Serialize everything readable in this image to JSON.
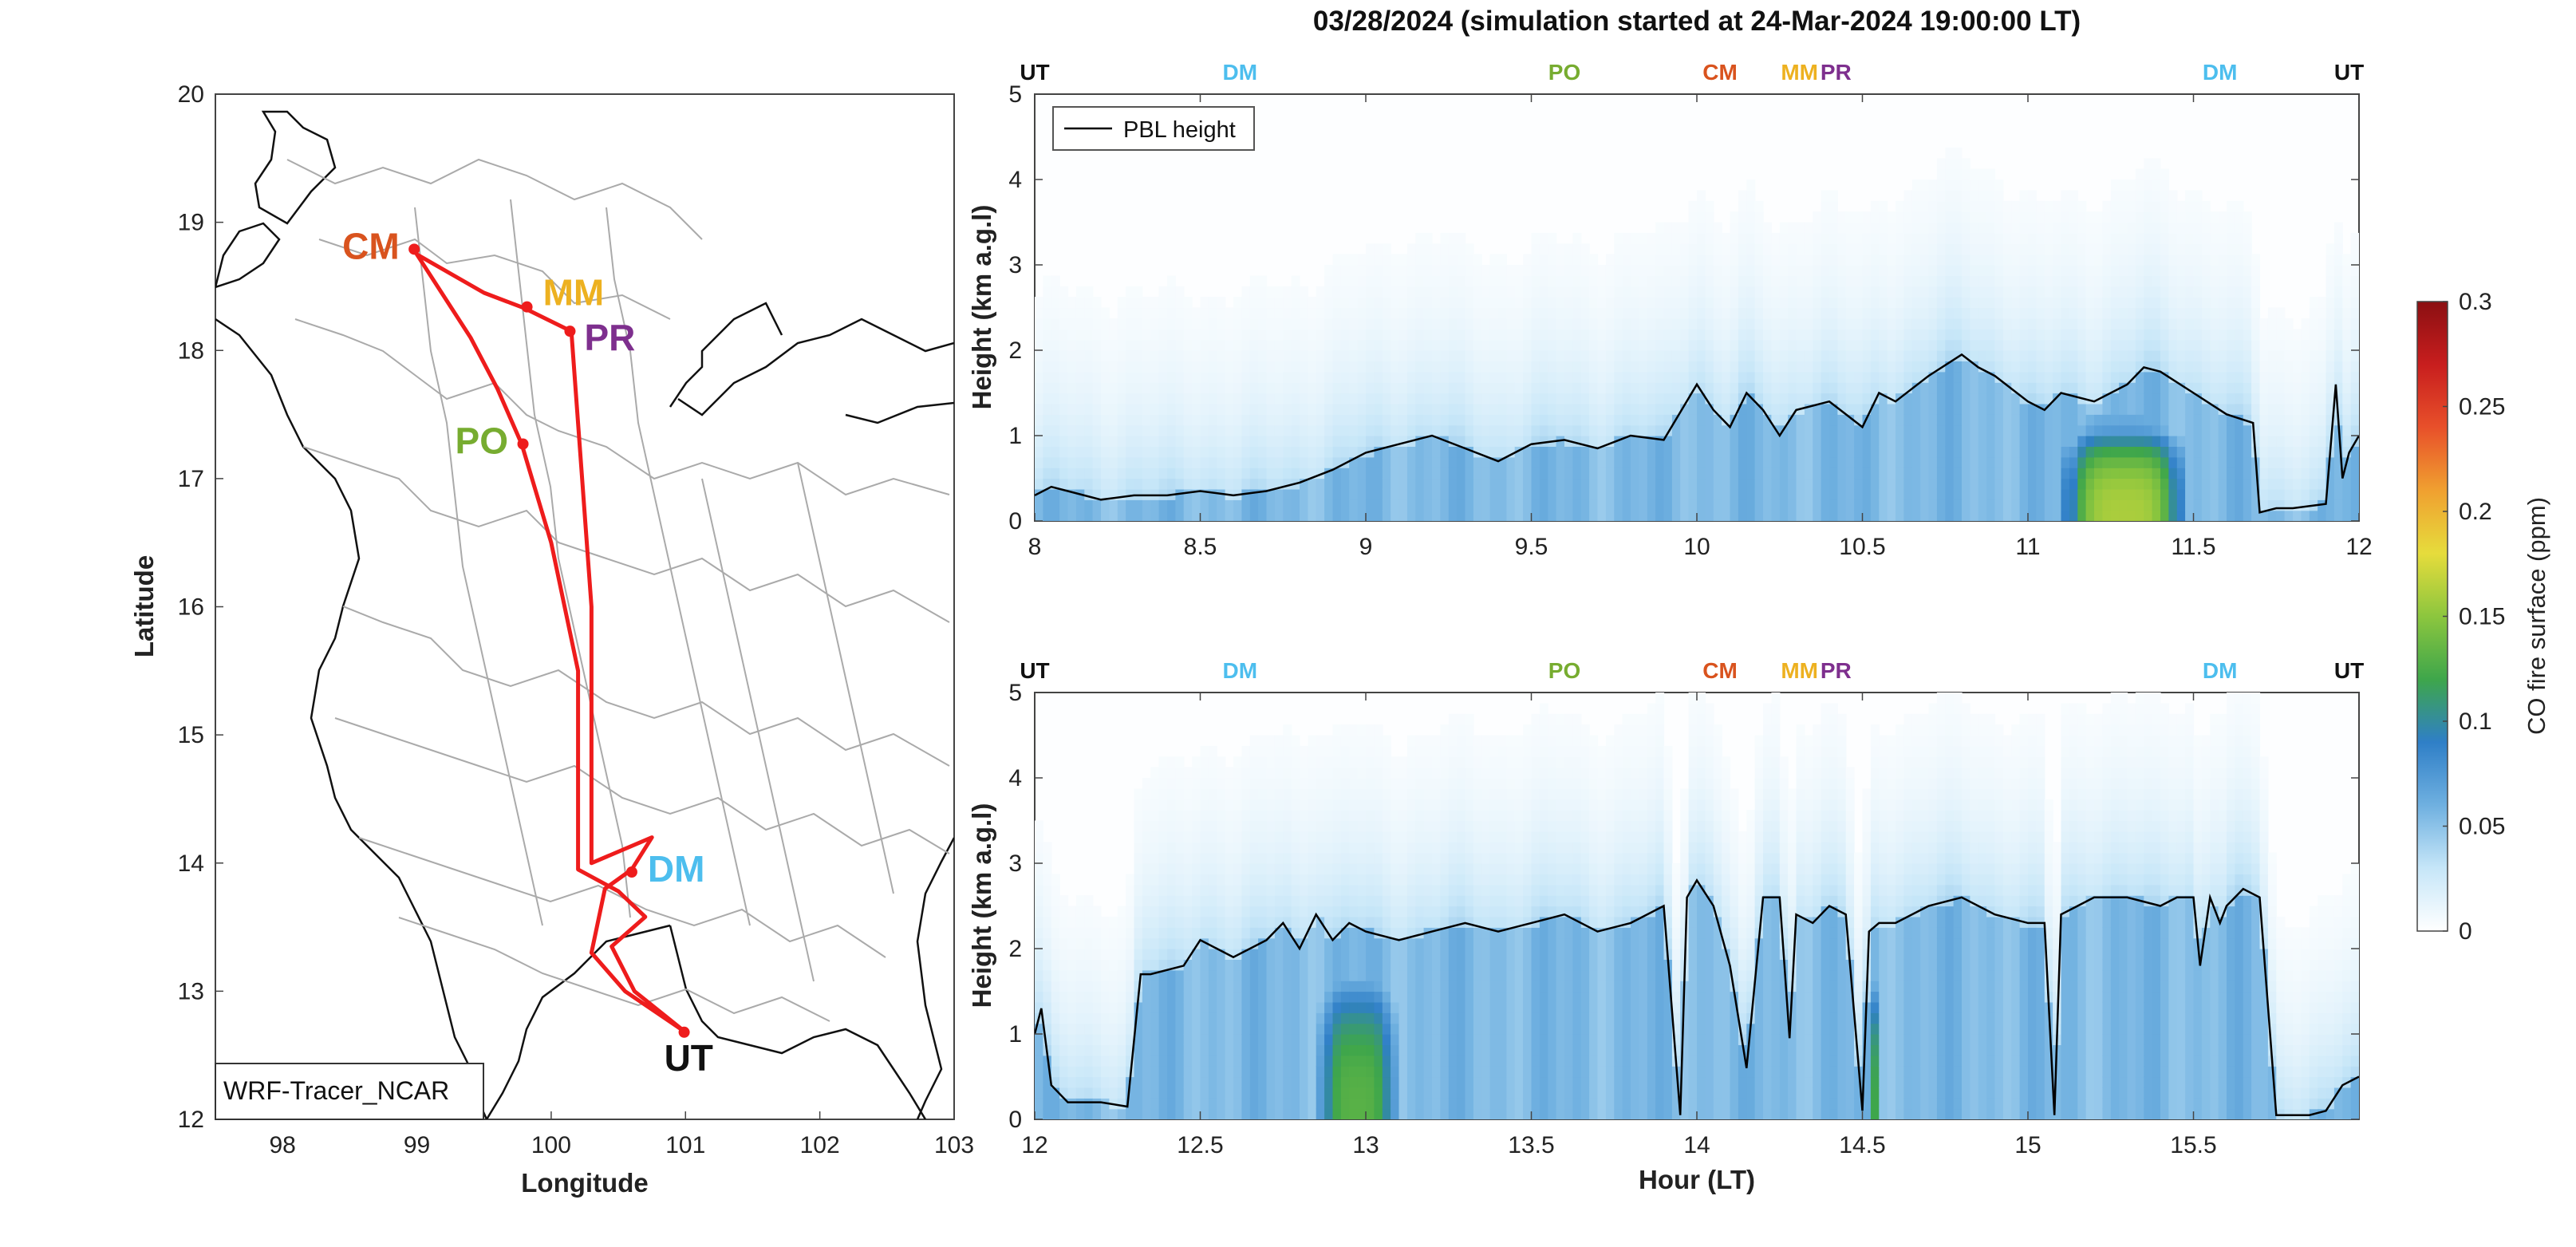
{
  "title": "03/28/2024 (simulation started at 24-Mar-2024 19:00:00 LT)",
  "map": {
    "xlabel": "Longitude",
    "ylabel": "Latitude",
    "xlim": [
      97.5,
      103
    ],
    "ylim": [
      12,
      20
    ],
    "xticks": [
      "98",
      "99",
      "100",
      "101",
      "102",
      "103"
    ],
    "yticks": [
      "12",
      "13",
      "14",
      "15",
      "16",
      "17",
      "18",
      "19",
      "20"
    ],
    "model_label": "WRF-Tracer_NCAR",
    "route_color": "#ee1c1c",
    "route": [
      [
        101.0,
        12.68
      ],
      [
        100.62,
        13.0
      ],
      [
        100.45,
        13.35
      ],
      [
        100.7,
        13.58
      ],
      [
        100.5,
        13.78
      ],
      [
        100.2,
        13.95
      ],
      [
        100.2,
        15.5
      ],
      [
        100.0,
        16.5
      ],
      [
        99.78,
        17.27
      ],
      [
        99.6,
        17.7
      ],
      [
        99.4,
        18.1
      ],
      [
        99.0,
        18.75
      ],
      [
        99.5,
        18.45
      ],
      [
        99.8,
        18.33
      ],
      [
        100.15,
        18.15
      ],
      [
        100.3,
        16.0
      ],
      [
        100.3,
        14.0
      ],
      [
        100.75,
        14.2
      ],
      [
        100.6,
        13.95
      ],
      [
        100.4,
        13.8
      ],
      [
        100.3,
        13.3
      ],
      [
        100.55,
        13.0
      ],
      [
        101.0,
        12.68
      ]
    ],
    "sites": [
      {
        "code": "CM",
        "lon": 98.98,
        "lat": 18.79,
        "color": "#d9531e"
      },
      {
        "code": "MM",
        "lon": 99.82,
        "lat": 18.34,
        "color": "#edb120"
      },
      {
        "code": "PR",
        "lon": 100.14,
        "lat": 18.15,
        "color": "#7e2f8e"
      },
      {
        "code": "PO",
        "lon": 99.79,
        "lat": 17.27,
        "color": "#77ac30"
      },
      {
        "code": "DM",
        "lon": 100.6,
        "lat": 13.93,
        "color": "#4dbeee"
      },
      {
        "code": "UT",
        "lon": 100.99,
        "lat": 12.68,
        "color": "#111111"
      }
    ]
  },
  "chart_data": [
    {
      "type": "heatmap",
      "xlabel": "",
      "ylabel": "Height (km a.g.l)",
      "xlim": [
        8,
        12
      ],
      "ylim": [
        0,
        5
      ],
      "xticks": [
        "8",
        "8.5",
        "9",
        "9.5",
        "10",
        "10.5",
        "11",
        "11.5",
        "12"
      ],
      "yticks": [
        "0",
        "1",
        "2",
        "3",
        "4",
        "5"
      ],
      "legend": "PBL height",
      "site_markers": [
        {
          "code": "UT",
          "x": 8.0,
          "color": "#111111"
        },
        {
          "code": "DM",
          "x": 8.62,
          "color": "#4dbeee"
        },
        {
          "code": "PO",
          "x": 9.6,
          "color": "#77ac30"
        },
        {
          "code": "CM",
          "x": 10.07,
          "color": "#d9531e"
        },
        {
          "code": "MM",
          "x": 10.31,
          "color": "#edb120"
        },
        {
          "code": "PR",
          "x": 10.42,
          "color": "#7e2f8e"
        },
        {
          "code": "DM",
          "x": 11.58,
          "color": "#4dbeee"
        },
        {
          "code": "UT",
          "x": 11.97,
          "color": "#111111"
        }
      ],
      "pbl": {
        "x": [
          8.0,
          8.05,
          8.1,
          8.2,
          8.3,
          8.4,
          8.5,
          8.6,
          8.7,
          8.8,
          8.9,
          9.0,
          9.1,
          9.2,
          9.3,
          9.4,
          9.5,
          9.6,
          9.7,
          9.8,
          9.9,
          10.0,
          10.05,
          10.1,
          10.15,
          10.2,
          10.25,
          10.3,
          10.4,
          10.5,
          10.55,
          10.6,
          10.7,
          10.8,
          10.85,
          10.9,
          11.0,
          11.05,
          11.1,
          11.2,
          11.3,
          11.35,
          11.4,
          11.5,
          11.6,
          11.68,
          11.7,
          11.75,
          11.8,
          11.9,
          11.93,
          11.95,
          11.97,
          12.0
        ],
        "y": [
          0.3,
          0.4,
          0.35,
          0.25,
          0.3,
          0.3,
          0.35,
          0.3,
          0.35,
          0.45,
          0.6,
          0.8,
          0.9,
          1.0,
          0.85,
          0.7,
          0.9,
          0.95,
          0.85,
          1.0,
          0.95,
          1.6,
          1.3,
          1.1,
          1.5,
          1.3,
          1.0,
          1.3,
          1.4,
          1.1,
          1.5,
          1.4,
          1.7,
          1.95,
          1.8,
          1.7,
          1.4,
          1.3,
          1.5,
          1.4,
          1.6,
          1.8,
          1.75,
          1.5,
          1.25,
          1.15,
          0.1,
          0.15,
          0.15,
          0.2,
          1.6,
          0.5,
          0.8,
          1.0
        ]
      },
      "co_hotspots": [
        {
          "x0": 11.1,
          "x1": 11.48,
          "ymax": 1.3,
          "peak_ppm": 0.16
        }
      ]
    },
    {
      "type": "heatmap",
      "xlabel": "Hour (LT)",
      "ylabel": "Height (km a.g.l)",
      "xlim": [
        12,
        16
      ],
      "ylim": [
        0,
        5
      ],
      "xticks": [
        "12",
        "12.5",
        "13",
        "13.5",
        "14",
        "14.5",
        "15",
        "15.5"
      ],
      "yticks": [
        "0",
        "1",
        "2",
        "3",
        "4",
        "5"
      ],
      "site_markers": [
        {
          "code": "UT",
          "x": 12.0,
          "color": "#111111"
        },
        {
          "code": "DM",
          "x": 12.62,
          "color": "#4dbeee"
        },
        {
          "code": "PO",
          "x": 13.6,
          "color": "#77ac30"
        },
        {
          "code": "CM",
          "x": 14.07,
          "color": "#d9531e"
        },
        {
          "code": "MM",
          "x": 14.31,
          "color": "#edb120"
        },
        {
          "code": "PR",
          "x": 14.42,
          "color": "#7e2f8e"
        },
        {
          "code": "DM",
          "x": 15.58,
          "color": "#4dbeee"
        },
        {
          "code": "UT",
          "x": 15.97,
          "color": "#111111"
        }
      ],
      "pbl": {
        "x": [
          12.0,
          12.02,
          12.05,
          12.1,
          12.2,
          12.28,
          12.32,
          12.35,
          12.45,
          12.5,
          12.55,
          12.6,
          12.7,
          12.75,
          12.8,
          12.85,
          12.9,
          12.95,
          13.0,
          13.1,
          13.2,
          13.3,
          13.4,
          13.5,
          13.6,
          13.7,
          13.8,
          13.9,
          13.95,
          13.97,
          14.0,
          14.05,
          14.1,
          14.15,
          14.2,
          14.25,
          14.28,
          14.3,
          14.35,
          14.4,
          14.45,
          14.5,
          14.52,
          14.55,
          14.6,
          14.7,
          14.8,
          14.9,
          15.0,
          15.05,
          15.08,
          15.1,
          15.15,
          15.2,
          15.3,
          15.4,
          15.45,
          15.5,
          15.52,
          15.55,
          15.58,
          15.6,
          15.65,
          15.7,
          15.75,
          15.8,
          15.85,
          15.9,
          15.95,
          16.0
        ],
        "y": [
          1.0,
          1.3,
          0.4,
          0.2,
          0.2,
          0.15,
          1.7,
          1.7,
          1.8,
          2.1,
          2.0,
          1.9,
          2.1,
          2.3,
          2.0,
          2.4,
          2.1,
          2.3,
          2.2,
          2.1,
          2.2,
          2.3,
          2.2,
          2.3,
          2.4,
          2.2,
          2.3,
          2.5,
          0.05,
          2.6,
          2.8,
          2.5,
          1.8,
          0.6,
          2.6,
          2.6,
          0.95,
          2.4,
          2.3,
          2.5,
          2.4,
          0.1,
          2.2,
          2.3,
          2.3,
          2.5,
          2.6,
          2.4,
          2.3,
          2.3,
          0.05,
          2.4,
          2.5,
          2.6,
          2.6,
          2.5,
          2.6,
          2.6,
          1.8,
          2.6,
          2.3,
          2.5,
          2.7,
          2.6,
          0.05,
          0.05,
          0.05,
          0.1,
          0.4,
          0.5
        ]
      },
      "co_hotspots": [
        {
          "x0": 12.85,
          "x1": 13.1,
          "ymax": 2.0,
          "peak_ppm": 0.13
        },
        {
          "x0": 14.52,
          "x1": 14.55,
          "ymax": 2.0,
          "peak_ppm": 0.12
        }
      ]
    }
  ],
  "colorbar": {
    "label": "CO fire surface (ppm)",
    "ticks": [
      "0",
      "0.05",
      "0.1",
      "0.15",
      "0.2",
      "0.25",
      "0.3"
    ],
    "min": 0,
    "max": 0.3,
    "colors": [
      "#ffffff",
      "#c6e6f8",
      "#6fb0e0",
      "#2f7fc7",
      "#3ea64b",
      "#8cc63e",
      "#e6dc3c",
      "#f0a030",
      "#e8502a",
      "#c81e1e",
      "#8b0f12"
    ]
  }
}
